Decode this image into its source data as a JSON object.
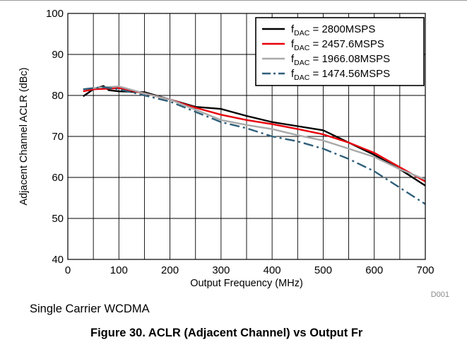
{
  "chart_data": {
    "type": "line",
    "xlabel": "Output Frequency (MHz)",
    "ylabel": "Adjacent Channel ACLR (dBc)",
    "xlim": [
      0,
      700
    ],
    "ylim": [
      40,
      100
    ],
    "xticks": [
      0,
      100,
      200,
      300,
      400,
      500,
      600,
      700
    ],
    "yticks": [
      40,
      50,
      60,
      70,
      80,
      90,
      100
    ],
    "grid": true,
    "legend_position": "top-right",
    "figure_id": "D001",
    "series": [
      {
        "name_parts": {
          "main": "f",
          "sub": "DAC",
          "rest": " = 2800MSPS"
        },
        "color": "#000000",
        "dash": "solid",
        "x": [
          30,
          50,
          70,
          80,
          100,
          150,
          200,
          250,
          300,
          350,
          400,
          450,
          500,
          550,
          600,
          650,
          700
        ],
        "y": [
          79.8,
          81.5,
          82.3,
          81.3,
          81.0,
          80.8,
          79.0,
          77.2,
          76.7,
          75.0,
          73.5,
          72.5,
          71.5,
          68.5,
          65.5,
          62.0,
          58.0
        ]
      },
      {
        "name_parts": {
          "main": "f",
          "sub": "DAC",
          "rest": " = 2457.6MSPS"
        },
        "color": "#e8000b",
        "dash": "solid",
        "x": [
          30,
          50,
          70,
          100,
          150,
          200,
          250,
          300,
          350,
          400,
          450,
          500,
          550,
          600,
          650,
          700
        ],
        "y": [
          81.0,
          81.5,
          81.6,
          81.8,
          80.5,
          79.0,
          77.0,
          75.3,
          74.0,
          73.0,
          71.8,
          70.5,
          68.5,
          66.0,
          62.5,
          59.0
        ]
      },
      {
        "name_parts": {
          "main": "f",
          "sub": "DAC",
          "rest": " = 1966.08MSPS"
        },
        "color": "#a9a9a9",
        "dash": "solid",
        "x": [
          30,
          50,
          70,
          100,
          150,
          200,
          250,
          300,
          350,
          400,
          450,
          500,
          550,
          600,
          650,
          700
        ],
        "y": [
          81.5,
          81.8,
          82.0,
          82.2,
          80.5,
          79.0,
          76.5,
          74.0,
          72.8,
          71.8,
          70.3,
          69.0,
          67.0,
          65.0,
          62.0,
          59.5
        ]
      },
      {
        "name_parts": {
          "main": "f",
          "sub": "DAC",
          "rest": " = 1474.56MSPS"
        },
        "color": "#2f5f7a",
        "dash": "dashdot",
        "x": [
          30,
          50,
          70,
          100,
          150,
          200,
          250,
          300,
          350,
          400,
          450,
          500,
          550,
          600,
          650,
          700
        ],
        "y": [
          81.5,
          81.8,
          82.0,
          81.5,
          80.0,
          78.5,
          76.0,
          73.5,
          72.0,
          70.0,
          68.8,
          67.0,
          64.5,
          61.5,
          57.5,
          53.5
        ]
      }
    ]
  },
  "caption": "Single Carrier WCDMA",
  "figure_caption": "Figure 30. ACLR (Adjacent Channel) vs Output Fr"
}
